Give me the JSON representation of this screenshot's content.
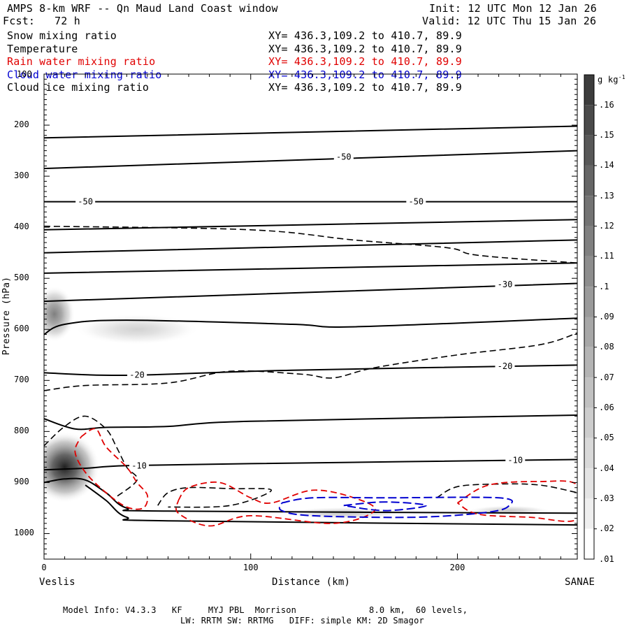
{
  "header": {
    "title": "AMPS 8-km WRF -- Qn Maud Land Coast window",
    "init": "Init: 12 UTC Mon 12 Jan 26",
    "fcst_label": "Fcst:",
    "fcst_value": "72 h",
    "valid": "Valid: 12 UTC Thu 15 Jan 26"
  },
  "legend": [
    {
      "name": "Snow mixing ratio",
      "coords": "XY= 436.3,109.2 to 410.7, 89.9",
      "color": "#000000"
    },
    {
      "name": "Temperature",
      "coords": "XY= 436.3,109.2 to 410.7, 89.9",
      "color": "#000000"
    },
    {
      "name": "Rain water mixing ratio",
      "coords": "XY= 436.3,109.2 to 410.7, 89.9",
      "color": "#e00000"
    },
    {
      "name": "Cloud water mixing ratio",
      "coords": "XY= 436.3,109.2 to 410.7, 89.9",
      "color": "#0000d0"
    },
    {
      "name": "Cloud ice mixing ratio",
      "coords": "XY= 436.3,109.2 to 410.7, 89.9",
      "color": "#000000"
    }
  ],
  "footer": {
    "line1": "Model Info: V4.3.3   KF     MYJ PBL  Morrison              8.0 km,  60 levels,",
    "line2": "LW: RRTM SW: RRTMG   DIFF: simple KM: 2D Smagor"
  },
  "chart_data": {
    "type": "cross-section contour",
    "xlabel": "Distance (km)",
    "ylabel": "Pressure (hPa)",
    "xlim": [
      0,
      258
    ],
    "ylim": [
      1050,
      100
    ],
    "x_ticks": [
      "0",
      "100",
      "200"
    ],
    "x_tick_values": [
      0,
      100,
      200
    ],
    "y_ticks": [
      "200",
      "300",
      "400",
      "500",
      "600",
      "700",
      "800",
      "900",
      "1000"
    ],
    "y_tick_values": [
      200,
      300,
      400,
      500,
      600,
      700,
      800,
      900,
      1000
    ],
    "y_top_label": "100",
    "left_endpoint": "Veslis",
    "right_endpoint": "SANAE",
    "colorbar": {
      "unit_label": "g kg",
      "unit_exponent": "-1",
      "levels": [
        ".16",
        ".15",
        ".14",
        ".13",
        ".12",
        ".11",
        ".1",
        ".09",
        ".08",
        ".07",
        ".06",
        ".05",
        ".04",
        ".03",
        ".02",
        ".01"
      ],
      "colors": [
        "#3c3c3c",
        "#4a4a4a",
        "#585858",
        "#666666",
        "#737373",
        "#808080",
        "#8d8d8d",
        "#9a9a9a",
        "#a7a7a7",
        "#b4b4b4",
        "#c1c1c1",
        "#cdcdcd",
        "#d9d9d9",
        "#e4e4e4",
        "#efefef",
        "#ffffff"
      ]
    },
    "temperature_lines": [
      {
        "points": [
          [
            0,
            225
          ],
          [
            258,
            202
          ]
        ]
      },
      {
        "points": [
          [
            0,
            285
          ],
          [
            258,
            250
          ]
        ]
      },
      {
        "points": [
          [
            0,
            350
          ],
          [
            258,
            350
          ]
        ]
      },
      {
        "points": [
          [
            0,
            405
          ],
          [
            258,
            385
          ]
        ]
      },
      {
        "points": [
          [
            0,
            450
          ],
          [
            258,
            425
          ]
        ]
      },
      {
        "points": [
          [
            0,
            490
          ],
          [
            258,
            470
          ]
        ]
      },
      {
        "points": [
          [
            0,
            545
          ],
          [
            258,
            510
          ]
        ]
      },
      {
        "points": [
          [
            0,
            610
          ],
          [
            10,
            590
          ],
          [
            40,
            582
          ],
          [
            120,
            590
          ],
          [
            150,
            595
          ],
          [
            258,
            578
          ]
        ]
      },
      {
        "points": [
          [
            0,
            685
          ],
          [
            40,
            690
          ],
          [
            120,
            680
          ],
          [
            258,
            670
          ]
        ]
      },
      {
        "points": [
          [
            0,
            775
          ],
          [
            15,
            795
          ],
          [
            30,
            792
          ],
          [
            60,
            790
          ],
          [
            100,
            780
          ],
          [
            258,
            768
          ]
        ]
      },
      {
        "points": [
          [
            0,
            875
          ],
          [
            20,
            872
          ],
          [
            40,
            867
          ],
          [
            100,
            863
          ],
          [
            258,
            855
          ]
        ]
      },
      {
        "points": [
          [
            0,
            900
          ],
          [
            10,
            893
          ],
          [
            20,
            895
          ],
          [
            30,
            920
          ],
          [
            40,
            950
          ],
          [
            60,
            956
          ],
          [
            258,
            960
          ]
        ]
      },
      {
        "points": [
          [
            20,
            905
          ],
          [
            30,
            935
          ],
          [
            40,
            968
          ],
          [
            60,
            975
          ],
          [
            258,
            983
          ]
        ]
      }
    ],
    "temperature_labels": [
      {
        "text": "-50",
        "x": 145,
        "p": 262
      },
      {
        "text": "-50",
        "x": 20,
        "p": 350
      },
      {
        "text": "-50",
        "x": 180,
        "p": 350
      },
      {
        "text": "-30",
        "x": 223,
        "p": 512
      },
      {
        "text": "-20",
        "x": 45,
        "p": 689
      },
      {
        "text": "-20",
        "x": 223,
        "p": 672
      },
      {
        "text": "-10",
        "x": 46,
        "p": 867
      },
      {
        "text": "-10",
        "x": 228,
        "p": 856
      }
    ],
    "snow_dashed_lines": [
      {
        "points": [
          [
            0,
            398
          ],
          [
            100,
            405
          ],
          [
            150,
            425
          ],
          [
            195,
            440
          ],
          [
            210,
            455
          ],
          [
            258,
            470
          ]
        ]
      },
      {
        "points": [
          [
            0,
            720
          ],
          [
            20,
            710
          ],
          [
            60,
            705
          ],
          [
            90,
            682
          ],
          [
            125,
            688
          ],
          [
            140,
            695
          ],
          [
            160,
            675
          ],
          [
            200,
            650
          ],
          [
            240,
            630
          ],
          [
            258,
            607
          ]
        ]
      },
      {
        "points": [
          [
            0,
            828
          ],
          [
            10,
            790
          ],
          [
            20,
            770
          ],
          [
            30,
            795
          ],
          [
            35,
            830
          ],
          [
            40,
            870
          ],
          [
            45,
            895
          ],
          [
            35,
            928
          ]
        ]
      },
      {
        "points": [
          [
            55,
            945
          ],
          [
            60,
            920
          ],
          [
            70,
            910
          ],
          [
            90,
            912
          ],
          [
            110,
            915
          ],
          [
            90,
            945
          ],
          [
            60,
            948
          ]
        ]
      },
      {
        "points": [
          [
            190,
            930
          ],
          [
            200,
            908
          ],
          [
            220,
            903
          ],
          [
            240,
            905
          ],
          [
            258,
            920
          ]
        ]
      }
    ],
    "rain_dashed_lines": [
      {
        "points": [
          [
            18,
            810
          ],
          [
            25,
            795
          ],
          [
            30,
            830
          ],
          [
            40,
            870
          ],
          [
            45,
            900
          ],
          [
            50,
            925
          ],
          [
            48,
            950
          ],
          [
            40,
            948
          ],
          [
            30,
            920
          ],
          [
            20,
            880
          ],
          [
            15,
            840
          ],
          [
            18,
            810
          ]
        ]
      },
      {
        "points": [
          [
            65,
            935
          ],
          [
            70,
            910
          ],
          [
            85,
            900
          ],
          [
            100,
            930
          ],
          [
            110,
            940
          ],
          [
            130,
            915
          ],
          [
            150,
            930
          ],
          [
            160,
            955
          ],
          [
            140,
            980
          ],
          [
            100,
            965
          ],
          [
            80,
            985
          ],
          [
            65,
            960
          ],
          [
            65,
            935
          ]
        ]
      },
      {
        "points": [
          [
            200,
            940
          ],
          [
            215,
            905
          ],
          [
            240,
            898
          ],
          [
            258,
            905
          ],
          [
            258,
            972
          ],
          [
            235,
            968
          ],
          [
            210,
            962
          ],
          [
            200,
            940
          ]
        ]
      }
    ],
    "cloudwater_dashed_lines": [
      {
        "points": [
          [
            115,
            940
          ],
          [
            130,
            930
          ],
          [
            165,
            930
          ],
          [
            220,
            930
          ],
          [
            225,
            945
          ],
          [
            215,
            958
          ],
          [
            180,
            968
          ],
          [
            130,
            965
          ],
          [
            115,
            955
          ],
          [
            115,
            940
          ]
        ]
      },
      {
        "points": [
          [
            145,
            945
          ],
          [
            165,
            938
          ],
          [
            185,
            945
          ],
          [
            165,
            955
          ],
          [
            145,
            945
          ]
        ]
      }
    ],
    "shaded_snow": [
      {
        "x": 5,
        "p": 570,
        "rx": 10,
        "rp": 55,
        "value": 0.08
      },
      {
        "x": 45,
        "p": 600,
        "rx": 30,
        "rp": 30,
        "value": 0.01
      },
      {
        "x": 10,
        "p": 870,
        "rx": 17,
        "rp": 70,
        "value": 0.16
      },
      {
        "x": 145,
        "p": 960,
        "rx": 30,
        "rp": 12,
        "value": 0.02
      },
      {
        "x": 225,
        "p": 955,
        "rx": 20,
        "rp": 10,
        "value": 0.02
      }
    ]
  }
}
